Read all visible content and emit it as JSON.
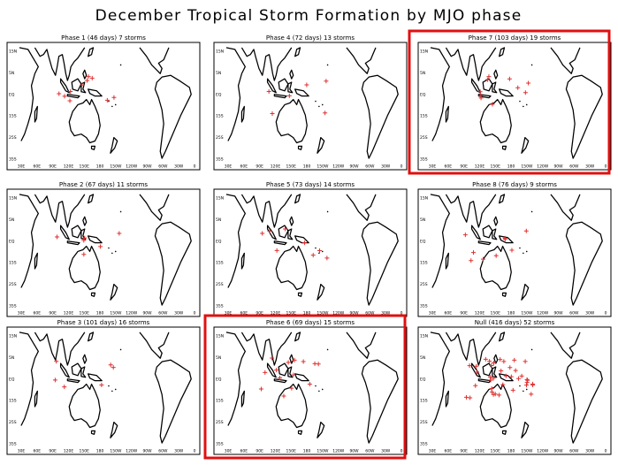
{
  "title": "December Tropical Storm Formation by MJO phase",
  "panels": [
    {
      "title": "Phase 1 (46 days)  7 storms"
    },
    {
      "title": "Phase 4 (72 days) 13 storms"
    },
    {
      "title": "Phase 7 (103 days) 19 storms"
    },
    {
      "title": "Phase 2 (67 days) 11 storms"
    },
    {
      "title": "Phase 5 (73 days) 14 storms"
    },
    {
      "title": "Phase 8 (76 days)  9 storms"
    },
    {
      "title": "Phase 3 (101 days) 16 storms"
    },
    {
      "title": "Phase 6 (69 days) 15 storms"
    },
    {
      "title": "Null (416 days)   52 storms"
    }
  ],
  "lat_labels": [
    "15N",
    "5N",
    "EQ",
    "15S",
    "25S",
    "35S"
  ],
  "lon_labels": [
    "30E",
    "60E",
    "90E",
    "120E",
    "150E",
    "180",
    "150W",
    "120W",
    "90W",
    "60W",
    "30W",
    "0"
  ]
}
